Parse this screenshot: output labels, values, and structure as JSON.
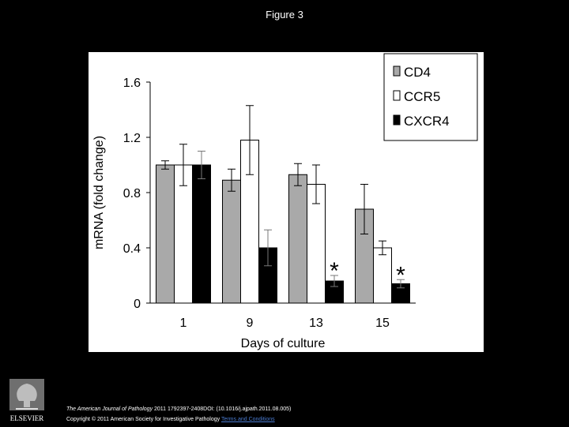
{
  "figure_title": "Figure 3",
  "footer": {
    "journal": "The American Journal of Pathology",
    "citation_rest": " 2011 1792397-2408DOI: (10.1016/j.ajpath.2011.08.005)",
    "copyright": "Copyright © 2011 American Society for Investigative Pathology ",
    "terms_link": "Terms and Conditions",
    "publisher_logo_text": "ELSEVIER"
  },
  "chart_data": {
    "type": "bar",
    "title": "",
    "xlabel": "Days of culture",
    "ylabel": "mRNA (fold change)",
    "ylim": [
      0,
      1.6
    ],
    "yticks": [
      "0",
      "0.4",
      "0.8",
      "1.2",
      "1.6"
    ],
    "categories": [
      "1",
      "9",
      "13",
      "15"
    ],
    "legend_position": "top-right",
    "series": [
      {
        "name": "CD4",
        "color": "#a9a9a9",
        "values": [
          1.0,
          0.89,
          0.93,
          0.68
        ],
        "errors": [
          0.03,
          0.08,
          0.08,
          0.18
        ]
      },
      {
        "name": "CCR5",
        "color": "#ffffff",
        "values": [
          1.0,
          1.18,
          0.86,
          0.4
        ],
        "errors": [
          0.15,
          0.25,
          0.14,
          0.05
        ]
      },
      {
        "name": "CXCR4",
        "color": "#000000",
        "values": [
          1.0,
          0.4,
          0.16,
          0.14
        ],
        "errors": [
          0.1,
          0.13,
          0.04,
          0.03
        ]
      }
    ],
    "significance": [
      {
        "category": "13",
        "series": "CXCR4",
        "label": "*"
      },
      {
        "category": "15",
        "series": "CXCR4",
        "label": "*"
      }
    ]
  }
}
